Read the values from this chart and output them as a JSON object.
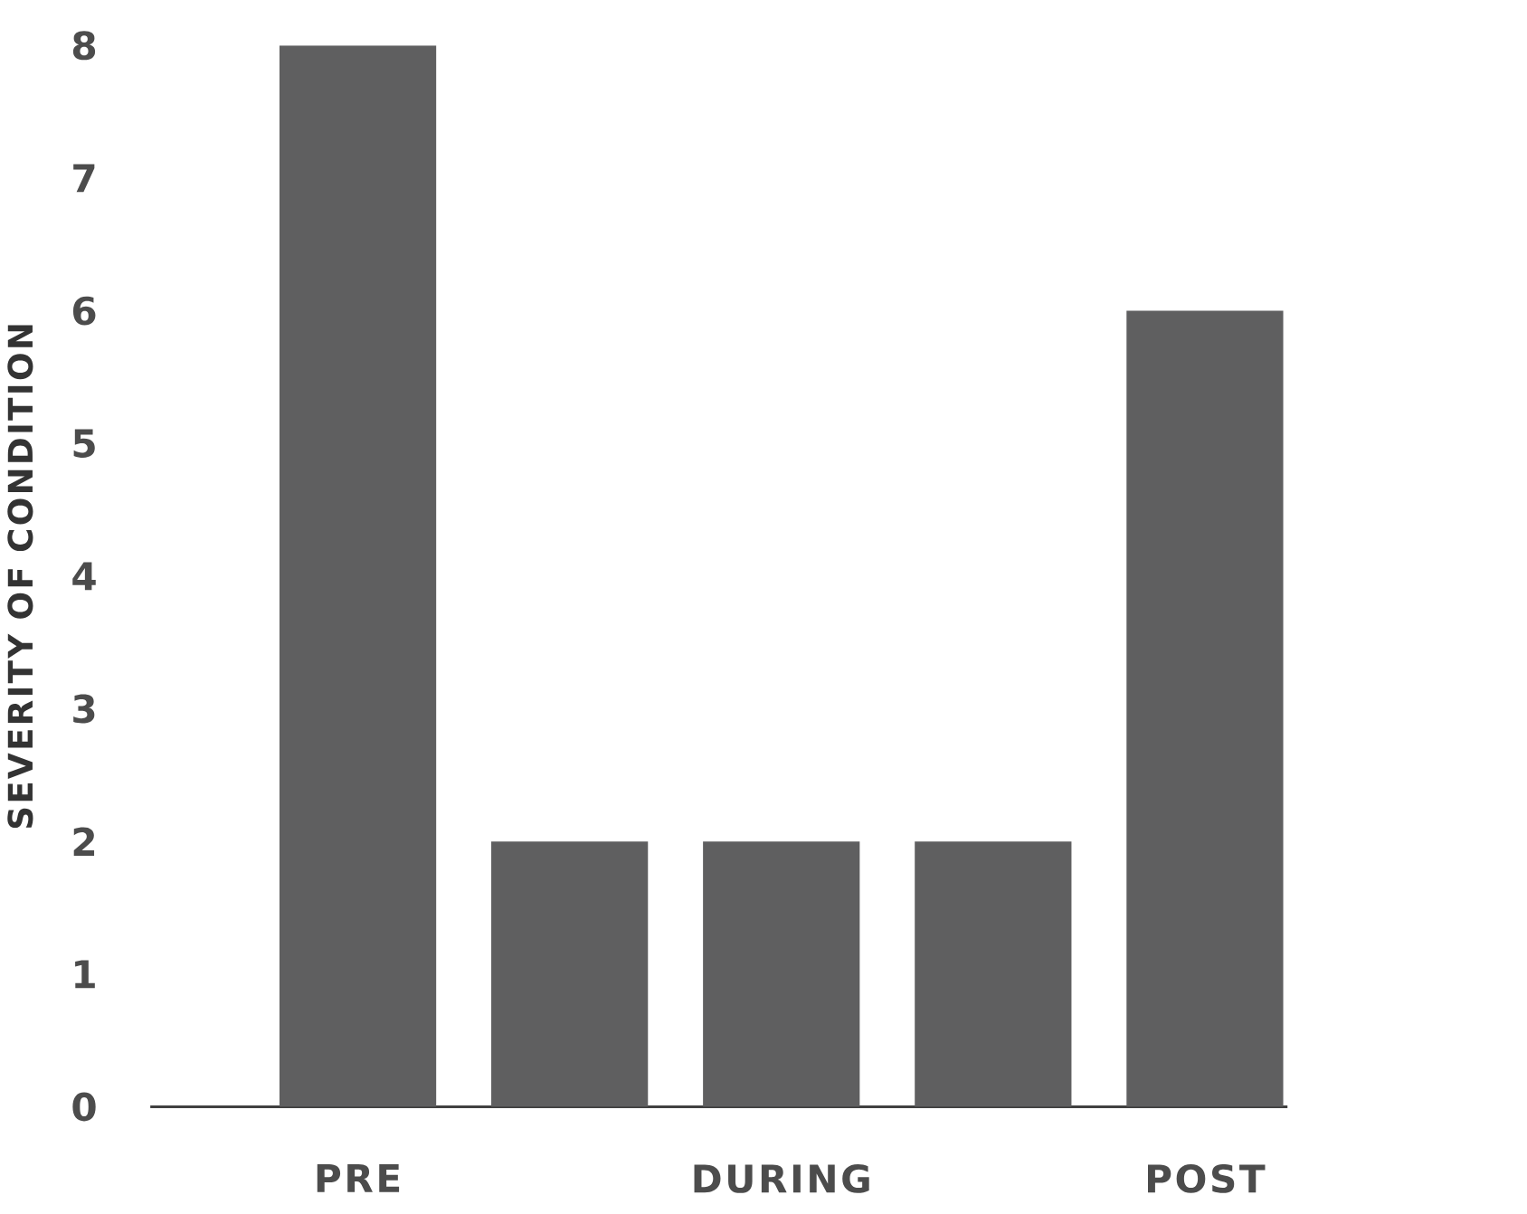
{
  "chart_data": {
    "type": "bar",
    "ylabel": "SEVERITY OF CONDITION",
    "categories": [
      "PRE",
      null,
      "DURING",
      null,
      "POST"
    ],
    "values": [
      8,
      2,
      2,
      2,
      6
    ],
    "color": "#5f5f60",
    "ylim": [
      0,
      8
    ],
    "yticks": [
      0,
      1,
      2,
      3,
      4,
      5,
      6,
      7,
      8
    ]
  }
}
